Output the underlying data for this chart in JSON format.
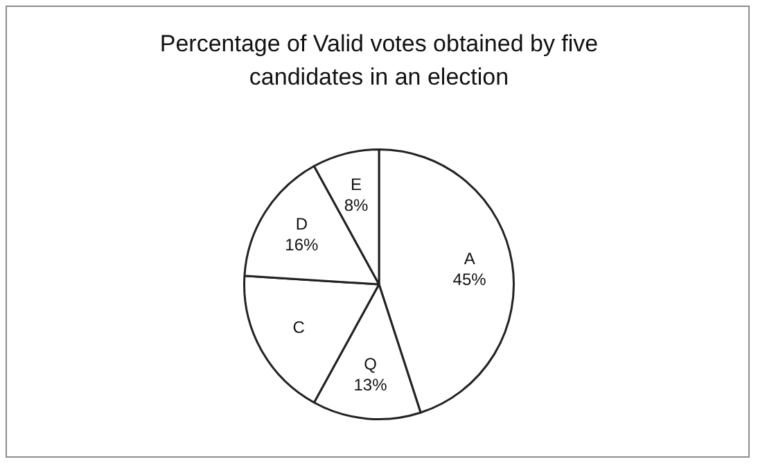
{
  "chart_data": {
    "type": "pie",
    "title": "Percentage of Valid votes obtained by five candidates in an election",
    "categories": [
      "A",
      "Q",
      "C",
      "D",
      "E"
    ],
    "values": [
      45,
      13,
      18,
      16,
      8
    ],
    "value_labels": [
      "45%",
      "13%",
      null,
      "16%",
      "8%"
    ],
    "colors": [
      "#ffffff",
      "#ffffff",
      "#ffffff",
      "#ffffff",
      "#ffffff"
    ],
    "legend": false
  }
}
